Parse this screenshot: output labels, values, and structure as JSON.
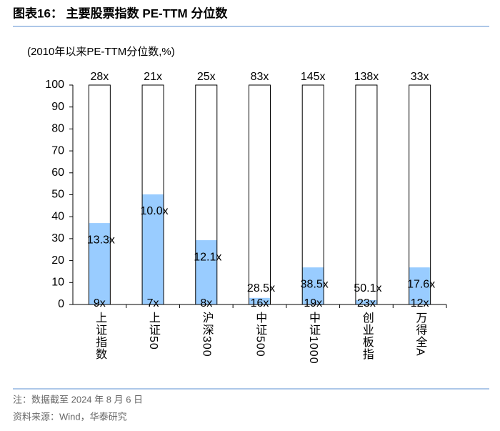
{
  "chart_data": {
    "type": "bar",
    "title": "图表16：  主要股票指数 PE-TTM 分位数",
    "subtitle": "(2010年以来PE-TTM分位数,%)",
    "categories": [
      "上证指数",
      "上证50",
      "沪深300",
      "中证500",
      "中证1000",
      "创业板指",
      "万得全A"
    ],
    "values": [
      37.1,
      50.2,
      29.3,
      3,
      16.9,
      2,
      16.9
    ],
    "color": "#99ccff",
    "max_pe": [
      "28x",
      "21x",
      "25x",
      "83x",
      "145x",
      "138x",
      "33x"
    ],
    "current_pe": [
      "13.3x",
      "10.0x",
      "12.1x",
      "28.5x",
      "38.5x",
      "50.1x",
      "17.6x"
    ],
    "min_pe": [
      "9x",
      "7x",
      "8x",
      "16x",
      "19x",
      "23x",
      "12x"
    ],
    "ylim": [
      0,
      100
    ],
    "yticks": [
      0,
      10,
      20,
      30,
      40,
      50,
      60,
      70,
      80,
      90,
      100
    ],
    "notes": [
      "注：数据截至 2024 年 8 月 6 日",
      "资料来源：Wind，华泰研究"
    ]
  }
}
